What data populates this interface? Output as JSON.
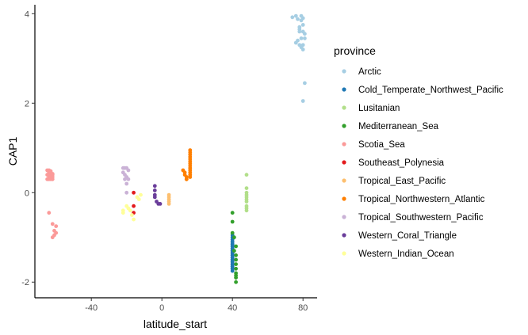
{
  "chart_data": {
    "type": "scatter",
    "xlabel": "latitude_start",
    "ylabel": "CAP1",
    "xlim": [
      -72,
      88
    ],
    "ylim": [
      -2.35,
      4.2
    ],
    "xticks": [
      -40,
      0,
      40,
      80
    ],
    "yticks": [
      -2,
      0,
      2,
      4
    ],
    "grid": false,
    "legend_title": "province",
    "legend_position": "right",
    "series": [
      {
        "name": "Arctic",
        "color": "#A6CEE3",
        "x": [
          74,
          76,
          77,
          78,
          78,
          79,
          79,
          80,
          80,
          81,
          76,
          78,
          79,
          80,
          81,
          79,
          80,
          77,
          78,
          80,
          81,
          80
        ],
        "y": [
          3.92,
          3.95,
          3.88,
          3.7,
          3.6,
          3.95,
          3.45,
          3.9,
          3.75,
          3.55,
          3.35,
          3.3,
          3.25,
          3.6,
          3.45,
          3.85,
          3.2,
          3.4,
          3.65,
          3.3,
          2.45,
          2.05
        ]
      },
      {
        "name": "Cold_Temperate_Northwest_Pacific",
        "color": "#1F78B4",
        "x": [
          40,
          40,
          40,
          40,
          40,
          40,
          40,
          40,
          40,
          40,
          40,
          40,
          40,
          40,
          40,
          40,
          40,
          40,
          40,
          40,
          40,
          40,
          40,
          40,
          40,
          40,
          40,
          40,
          40,
          40
        ],
        "y": [
          -0.95,
          -1.05,
          -1.1,
          -1.15,
          -1.2,
          -1.25,
          -1.3,
          -1.35,
          -1.4,
          -1.45,
          -1.5,
          -1.55,
          -1.6,
          -1.65,
          -1.7,
          -1.75,
          -1.0,
          -1.3,
          -1.4,
          -1.5,
          -1.6,
          -1.2,
          -1.1,
          -1.45,
          -1.35,
          -1.55,
          -1.25,
          -1.65,
          -1.15,
          -1.7
        ]
      },
      {
        "name": "Lusitanian",
        "color": "#B2DF8A",
        "x": [
          48,
          48,
          48,
          48,
          48,
          48,
          48,
          48,
          48,
          48
        ],
        "y": [
          0.4,
          0.1,
          0.0,
          -0.05,
          -0.1,
          -0.15,
          -0.2,
          -0.3,
          -0.35,
          -0.4
        ]
      },
      {
        "name": "Mediterranean_Sea",
        "color": "#33A02C",
        "x": [
          40,
          40,
          40,
          41,
          42,
          42,
          42,
          42,
          42,
          42,
          42,
          42,
          42,
          41
        ],
        "y": [
          -0.45,
          -0.65,
          -0.9,
          -1.0,
          -1.2,
          -1.4,
          -1.5,
          -1.6,
          -1.7,
          -1.8,
          -1.85,
          -1.9,
          -2.0,
          -1.3
        ]
      },
      {
        "name": "Scotia_Sea",
        "color": "#FB9A99",
        "x": [
          -65,
          -64,
          -63,
          -62,
          -65,
          -64,
          -63,
          -62,
          -64,
          -63,
          -62,
          -65,
          -64,
          -63,
          -62,
          -64,
          -62,
          -60,
          -61,
          -60,
          -61,
          -62
        ],
        "y": [
          0.5,
          0.5,
          0.45,
          0.4,
          0.4,
          0.35,
          0.3,
          0.35,
          0.45,
          0.4,
          0.3,
          0.3,
          0.3,
          0.48,
          0.42,
          -0.45,
          -0.7,
          -0.75,
          -0.85,
          -0.9,
          -0.95,
          -1.0
        ]
      },
      {
        "name": "Southeast_Polynesia",
        "color": "#E31A1C",
        "x": [
          -16,
          -16,
          -16
        ],
        "y": [
          0.0,
          -0.3,
          -0.45
        ]
      },
      {
        "name": "Tropical_East_Pacific",
        "color": "#FDBF6F",
        "x": [
          4,
          4,
          4,
          4,
          4
        ],
        "y": [
          -0.05,
          -0.1,
          -0.15,
          -0.2,
          -0.25
        ]
      },
      {
        "name": "Tropical_Northwestern_Atlantic",
        "color": "#FF7F00",
        "x": [
          16,
          16,
          16,
          16,
          16,
          16,
          16,
          16,
          16,
          16,
          16,
          16,
          16,
          14,
          14,
          13,
          12,
          13,
          14
        ],
        "y": [
          0.95,
          0.9,
          0.85,
          0.8,
          0.75,
          0.7,
          0.65,
          0.6,
          0.55,
          0.5,
          0.45,
          0.4,
          0.35,
          0.35,
          0.3,
          0.45,
          0.5,
          0.4,
          0.3
        ]
      },
      {
        "name": "Tropical_Southwestern_Pacific",
        "color": "#CAB2D6",
        "x": [
          -22,
          -21,
          -20,
          -19,
          -22,
          -21,
          -20,
          -19,
          -21,
          -20,
          -20
        ],
        "y": [
          0.55,
          0.55,
          0.55,
          0.5,
          0.45,
          0.4,
          0.35,
          0.3,
          0.3,
          0.2,
          0.0
        ]
      },
      {
        "name": "Western_Coral_Triangle",
        "color": "#6A3D9A",
        "x": [
          -4,
          -4,
          -4,
          -4,
          -3,
          -2,
          -1
        ],
        "y": [
          0.15,
          0.05,
          -0.05,
          -0.1,
          -0.2,
          -0.25,
          -0.25
        ]
      },
      {
        "name": "Western_Indian_Ocean",
        "color": "#FFFF99",
        "x": [
          -22,
          -22,
          -20,
          -19,
          -18,
          -17,
          -16,
          -14,
          -13,
          -12
        ],
        "y": [
          -0.4,
          -0.45,
          -0.3,
          -0.35,
          -0.4,
          -0.5,
          -0.6,
          -0.1,
          -0.15,
          -0.05
        ]
      }
    ]
  }
}
